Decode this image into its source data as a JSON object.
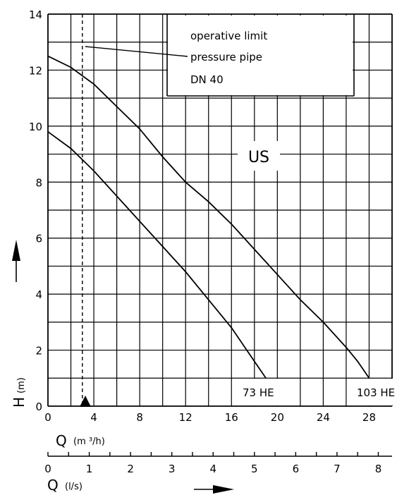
{
  "chart_data": {
    "type": "line",
    "x_unit_primary": "m³/h",
    "y_unit": "m",
    "xlim": [
      0,
      30
    ],
    "ylim": [
      0,
      14
    ],
    "x_ticks": [
      0,
      4,
      8,
      12,
      16,
      20,
      24,
      28
    ],
    "y_ticks": [
      0,
      2,
      4,
      6,
      8,
      10,
      12,
      14
    ],
    "secondary_x_ticks_ls": [
      0,
      1,
      2,
      3,
      4,
      5,
      6,
      7,
      8
    ],
    "grid": true,
    "operative_limit_q": 3,
    "series": [
      {
        "name": "73 HE",
        "points": [
          [
            0,
            9.8
          ],
          [
            2,
            9.2
          ],
          [
            4,
            8.4
          ],
          [
            6,
            7.5
          ],
          [
            8,
            6.6
          ],
          [
            10,
            5.7
          ],
          [
            12,
            4.8
          ],
          [
            14,
            3.8
          ],
          [
            16,
            2.8
          ],
          [
            18,
            1.6
          ],
          [
            19,
            1.0
          ]
        ]
      },
      {
        "name": "103 HE",
        "points": [
          [
            0,
            12.5
          ],
          [
            2,
            12.1
          ],
          [
            4,
            11.5
          ],
          [
            6,
            10.7
          ],
          [
            8,
            9.9
          ],
          [
            10,
            8.9
          ],
          [
            12,
            8.0
          ],
          [
            14,
            7.3
          ],
          [
            16,
            6.5
          ],
          [
            18,
            5.6
          ],
          [
            20,
            4.7
          ],
          [
            22,
            3.8
          ],
          [
            24,
            3.0
          ],
          [
            26,
            2.1
          ],
          [
            27,
            1.6
          ],
          [
            28,
            1.0
          ]
        ]
      }
    ]
  },
  "labels": {
    "y_axis_symbol": "H",
    "y_axis_unit": "(m)",
    "x_axis_symbol": "Q",
    "x_axis_unit": "(m ³/h)",
    "secondary_axis_symbol": "Q",
    "secondary_axis_unit": "(l/s)",
    "region_label": "US",
    "annotation_line1": "operative limit",
    "annotation_line2": "pressure pipe",
    "annotation_line3": "DN 40"
  }
}
